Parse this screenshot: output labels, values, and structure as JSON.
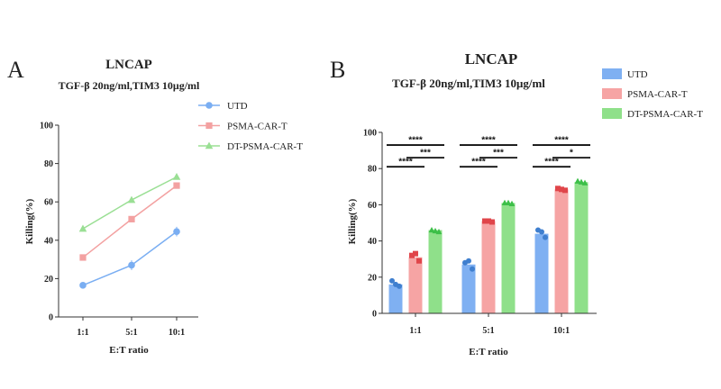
{
  "chart_data": [
    {
      "panel": "A",
      "type": "line",
      "title": "LNCAP",
      "subtitle": "TGF-β 20ng/ml,TIM3 10μg/ml",
      "xlabel": "E:T ratio",
      "ylabel": "Killing(%)",
      "categories": [
        "1:1",
        "5:1",
        "10:1"
      ],
      "ylim": [
        0,
        100
      ],
      "yticks": [
        0,
        20,
        40,
        60,
        80,
        100
      ],
      "legend_position": "top-right",
      "series": [
        {
          "name": "UTD",
          "color": "#7aaef2",
          "marker": "circle",
          "values": [
            16.5,
            27,
            44.5
          ],
          "errors": [
            1.5,
            2.5,
            2.5
          ]
        },
        {
          "name": "PSMA-CAR-T",
          "color": "#f3a1a1",
          "marker": "square",
          "values": [
            31,
            51,
            68.5
          ],
          "errors": [
            1.5,
            1,
            1
          ]
        },
        {
          "name": "DT-PSMA-CAR-T",
          "color": "#9adf94",
          "marker": "triangle",
          "values": [
            46,
            61,
            73
          ],
          "errors": [
            0.5,
            0.5,
            0.5
          ]
        }
      ]
    },
    {
      "panel": "B",
      "type": "bar",
      "title": "LNCAP",
      "subtitle": "TGF-β 20ng/ml,TIM3 10μg/ml",
      "xlabel": "E:T ratio",
      "ylabel": "Killing(%)",
      "categories": [
        "1:1",
        "5:1",
        "10:1"
      ],
      "ylim": [
        0,
        100
      ],
      "yticks": [
        0,
        20,
        40,
        60,
        80,
        100
      ],
      "legend_position": "top-right",
      "series": [
        {
          "name": "UTD",
          "color": "#7fb0f2",
          "dot_color": "#3f7fcf",
          "values": [
            16,
            27,
            44
          ],
          "points": [
            [
              18,
              16,
              15
            ],
            [
              28,
              29,
              24.5
            ],
            [
              46,
              45,
              42
            ]
          ]
        },
        {
          "name": "PSMA-CAR-T",
          "color": "#f6a4a4",
          "dot_color": "#e0454a",
          "values": [
            31,
            51,
            68.5
          ],
          "points": [
            [
              32,
              33,
              29
            ],
            [
              51,
              51,
              50.5
            ],
            [
              69,
              68.5,
              68
            ]
          ]
        },
        {
          "name": "DT-PSMA-CAR-T",
          "color": "#8fe08a",
          "dot_color": "#3cbf48",
          "values": [
            46,
            61,
            72.5
          ],
          "points": [
            [
              46,
              45.5,
              45
            ],
            [
              61,
              61,
              60.5
            ],
            [
              73,
              72.5,
              72
            ]
          ]
        }
      ],
      "significance": [
        {
          "group": 0,
          "from": 0,
          "to": 2,
          "y": 93,
          "label": "****"
        },
        {
          "group": 0,
          "from": 0,
          "to": 1,
          "y": 81,
          "label": "****"
        },
        {
          "group": 0,
          "from": 1,
          "to": 2,
          "y": 86,
          "label": "***"
        },
        {
          "group": 1,
          "from": 0,
          "to": 2,
          "y": 93,
          "label": "****"
        },
        {
          "group": 1,
          "from": 0,
          "to": 1,
          "y": 81,
          "label": "****"
        },
        {
          "group": 1,
          "from": 1,
          "to": 2,
          "y": 86,
          "label": "***"
        },
        {
          "group": 2,
          "from": 0,
          "to": 2,
          "y": 93,
          "label": "****"
        },
        {
          "group": 2,
          "from": 0,
          "to": 1,
          "y": 81,
          "label": "****"
        },
        {
          "group": 2,
          "from": 1,
          "to": 2,
          "y": 86,
          "label": "*"
        }
      ]
    }
  ]
}
